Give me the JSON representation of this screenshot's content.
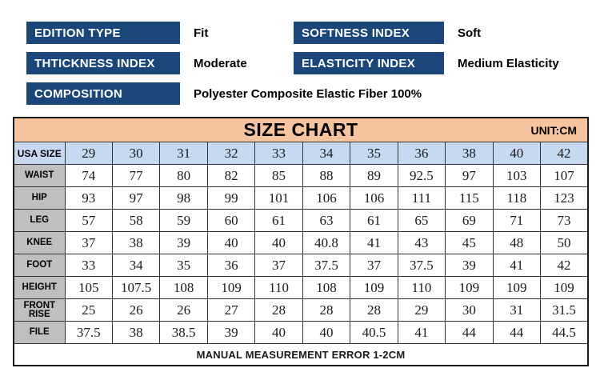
{
  "specs": {
    "edition_type": {
      "label": "EDITION TYPE",
      "value": "Fit"
    },
    "softness": {
      "label": "SOFTNESS INDEX",
      "value": "Soft"
    },
    "thickness": {
      "label": "THTICKNESS INDEX",
      "value": "Moderate"
    },
    "elasticity": {
      "label": "ELASTICITY INDEX",
      "value": "Medium Elasticity"
    },
    "composition": {
      "label": "COMPOSITION",
      "value": "Polyester Composite Elastic Fiber 100%"
    }
  },
  "size_chart": {
    "title": "SIZE CHART",
    "unit_label": "UNIT:CM",
    "size_row_label": "USA SIZE",
    "sizes": [
      "29",
      "30",
      "31",
      "32",
      "33",
      "34",
      "35",
      "36",
      "38",
      "40",
      "42"
    ],
    "rows": [
      {
        "label": "WAIST",
        "values": [
          "74",
          "77",
          "80",
          "82",
          "85",
          "88",
          "89",
          "92.5",
          "97",
          "103",
          "107"
        ]
      },
      {
        "label": "HIP",
        "values": [
          "93",
          "97",
          "98",
          "99",
          "101",
          "106",
          "106",
          "111",
          "115",
          "118",
          "123"
        ]
      },
      {
        "label": "LEG",
        "values": [
          "57",
          "58",
          "59",
          "60",
          "61",
          "63",
          "61",
          "65",
          "69",
          "71",
          "73"
        ]
      },
      {
        "label": "KNEE",
        "values": [
          "37",
          "38",
          "39",
          "40",
          "40",
          "40.8",
          "41",
          "43",
          "45",
          "48",
          "50"
        ]
      },
      {
        "label": "FOOT",
        "values": [
          "33",
          "34",
          "35",
          "36",
          "37",
          "37.5",
          "37",
          "37.5",
          "39",
          "41",
          "42"
        ]
      },
      {
        "label": "HEIGHT",
        "values": [
          "105",
          "107.5",
          "108",
          "109",
          "110",
          "108",
          "109",
          "110",
          "109",
          "109",
          "109"
        ]
      },
      {
        "label": "FRONT RISE",
        "values": [
          "25",
          "26",
          "26",
          "27",
          "28",
          "28",
          "28",
          "29",
          "30",
          "31",
          "31.5"
        ]
      },
      {
        "label": "FILE",
        "values": [
          "37.5",
          "38",
          "38.5",
          "39",
          "40",
          "40",
          "40.5",
          "41",
          "44",
          "44",
          "44.5"
        ]
      }
    ],
    "footnote": "MANUAL MEASUREMENT ERROR 1-2CM"
  },
  "colors": {
    "navy": "#1b4679",
    "peach": "#f6c49e",
    "light_blue": "#c6d9f0",
    "gray": "#bfbfbf"
  }
}
